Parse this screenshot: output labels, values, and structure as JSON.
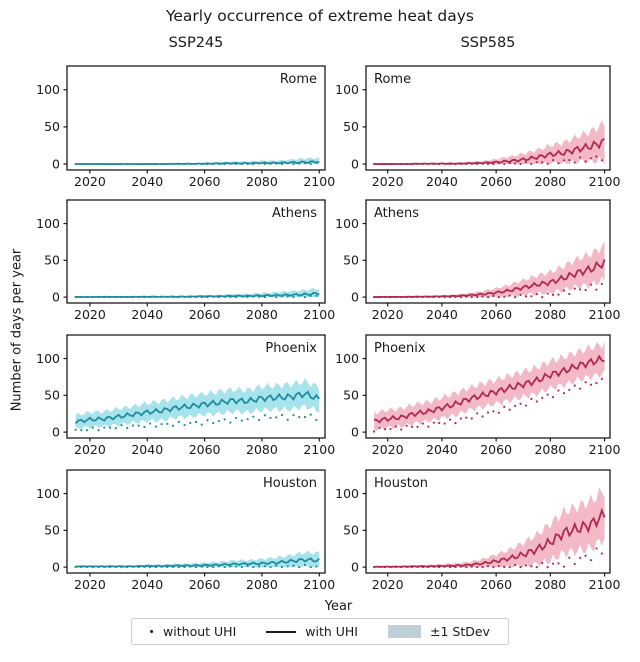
{
  "chart_data": {
    "type": "area",
    "title": "Yearly occurrence of extreme heat days",
    "col_titles": [
      "SSP245",
      "SSP585"
    ],
    "xlabel": "Year",
    "ylabel": "Number of days per year",
    "grid": false,
    "legend_position": "bottom",
    "legend": {
      "without_uhi": "without UHI",
      "with_uhi": "with UHI",
      "stdev": "±1 StDev",
      "patch_color": "#bfcfd8"
    },
    "colors": {
      "SSP245": {
        "line": "#1f8c9e",
        "band": "#a7e3ec"
      },
      "SSP585": {
        "line": "#b02a50",
        "band": "#f3b9c6"
      }
    },
    "x": [
      2015,
      2020,
      2025,
      2030,
      2035,
      2040,
      2045,
      2050,
      2055,
      2060,
      2065,
      2070,
      2075,
      2080,
      2085,
      2090,
      2095,
      2100
    ],
    "xticks": [
      2020,
      2040,
      2060,
      2080,
      2100
    ],
    "yticks": [
      0,
      50,
      100
    ],
    "xlim": [
      2012,
      2102
    ],
    "ylim": [
      -8,
      132
    ],
    "panels": [
      {
        "city": "Rome",
        "scenario": "SSP245",
        "with_uhi": [
          0,
          0,
          0,
          0,
          0,
          0,
          0,
          0.3,
          0.3,
          0.5,
          0.7,
          1,
          1,
          1.5,
          1.5,
          2,
          2.5,
          3
        ],
        "without_uhi": [
          0,
          0,
          0,
          0,
          0,
          0,
          0,
          0,
          0,
          0,
          0,
          0,
          0,
          0.2,
          0.3,
          0.5,
          0.5,
          1
        ],
        "std": [
          0.3,
          0.3,
          0.3,
          0.5,
          0.5,
          0.5,
          0.7,
          1,
          1,
          1.5,
          2,
          2.5,
          2.5,
          3,
          3,
          4,
          5,
          5
        ]
      },
      {
        "city": "Rome",
        "scenario": "SSP585",
        "with_uhi": [
          0,
          0,
          0,
          0.3,
          0.5,
          0.5,
          0.5,
          1,
          1.5,
          2.5,
          4,
          6,
          9,
          13,
          15,
          20,
          24,
          30
        ],
        "without_uhi": [
          0,
          0,
          0,
          0,
          0,
          0,
          0,
          0,
          0,
          0.3,
          0.5,
          1,
          1.5,
          2.5,
          4,
          5,
          7,
          10
        ],
        "std": [
          0.3,
          0.3,
          0.5,
          0.7,
          1,
          1.5,
          1.5,
          2,
          2.5,
          4,
          6,
          8,
          10,
          12,
          14,
          17,
          20,
          25
        ]
      },
      {
        "city": "Athens",
        "scenario": "SSP245",
        "with_uhi": [
          0.2,
          0.2,
          0.3,
          0.3,
          0.3,
          0.5,
          0.5,
          0.5,
          0.7,
          1,
          1,
          1.5,
          1.5,
          2,
          2.5,
          3,
          3.5,
          5
        ],
        "without_uhi": [
          0,
          0,
          0,
          0,
          0,
          0,
          0,
          0,
          0,
          0.2,
          0.2,
          0.3,
          0.3,
          0.5,
          0.5,
          0.7,
          1,
          1.5
        ],
        "std": [
          0.5,
          0.5,
          0.7,
          0.7,
          1,
          1,
          1,
          1.5,
          1.5,
          2,
          2,
          2.5,
          3,
          3.5,
          4,
          5,
          6,
          7
        ]
      },
      {
        "city": "Athens",
        "scenario": "SSP585",
        "with_uhi": [
          0.2,
          0.3,
          0.3,
          0.5,
          0.7,
          1,
          1.5,
          2.5,
          4,
          6,
          9,
          13,
          17,
          20,
          26,
          33,
          38,
          47
        ],
        "without_uhi": [
          0,
          0,
          0,
          0,
          0,
          0,
          0,
          0.2,
          0.3,
          0.5,
          1,
          1.5,
          2,
          3,
          6,
          10,
          13,
          16
        ],
        "std": [
          0.5,
          0.5,
          0.7,
          1,
          1,
          1.5,
          2,
          3,
          4,
          6,
          8,
          10,
          12,
          14,
          16,
          19,
          21,
          23
        ]
      },
      {
        "city": "Phoenix",
        "scenario": "SSP245",
        "with_uhi": [
          14,
          17,
          18,
          21,
          24,
          27,
          29,
          33,
          35,
          38,
          40,
          43,
          42,
          46,
          47,
          48,
          52,
          45
        ],
        "without_uhi": [
          2,
          4,
          5,
          7,
          8,
          9,
          10,
          11,
          12,
          13,
          15,
          16,
          18,
          20,
          21,
          20,
          22,
          19
        ],
        "std": [
          9,
          10,
          10,
          11,
          11,
          12,
          13,
          13,
          14,
          14,
          15,
          15,
          15,
          16,
          16,
          17,
          17,
          16
        ]
      },
      {
        "city": "Phoenix",
        "scenario": "SSP585",
        "with_uhi": [
          15,
          18,
          20,
          25,
          28,
          33,
          38,
          45,
          50,
          55,
          60,
          65,
          70,
          78,
          83,
          90,
          95,
          100
        ],
        "without_uhi": [
          3,
          5,
          6,
          8,
          10,
          13,
          15,
          20,
          24,
          28,
          33,
          38,
          44,
          50,
          55,
          62,
          66,
          70
        ],
        "std": [
          11,
          12,
          12,
          13,
          13,
          14,
          15,
          15,
          16,
          16,
          17,
          17,
          18,
          18,
          19,
          19,
          20,
          20
        ]
      },
      {
        "city": "Houston",
        "scenario": "SSP245",
        "with_uhi": [
          1,
          1,
          1,
          1,
          1,
          1.5,
          1.5,
          2,
          2,
          2.5,
          3,
          4,
          4.5,
          5,
          6,
          8,
          10,
          9
        ],
        "without_uhi": [
          0,
          0,
          0,
          0,
          0,
          0,
          0,
          0,
          0,
          0.2,
          0.3,
          0.5,
          0.5,
          0.7,
          0.7,
          1,
          1,
          1
        ],
        "std": [
          1,
          1,
          1,
          1.5,
          1.5,
          2,
          2,
          2.5,
          3,
          3.5,
          4,
          5,
          5,
          6,
          7,
          8,
          10,
          10
        ]
      },
      {
        "city": "Houston",
        "scenario": "SSP585",
        "with_uhi": [
          0.5,
          0.5,
          0.7,
          1,
          1,
          1.5,
          2,
          3,
          5,
          8,
          12,
          17,
          24,
          34,
          47,
          52,
          58,
          72
        ],
        "without_uhi": [
          0,
          0,
          0,
          0,
          0,
          0,
          0,
          0,
          0,
          0.2,
          0.3,
          0.5,
          1,
          2,
          5,
          10,
          15,
          25
        ],
        "std": [
          0.7,
          1,
          1,
          1.5,
          2,
          2.5,
          3,
          4,
          6,
          9,
          12,
          16,
          20,
          25,
          28,
          30,
          32,
          33
        ]
      }
    ]
  }
}
